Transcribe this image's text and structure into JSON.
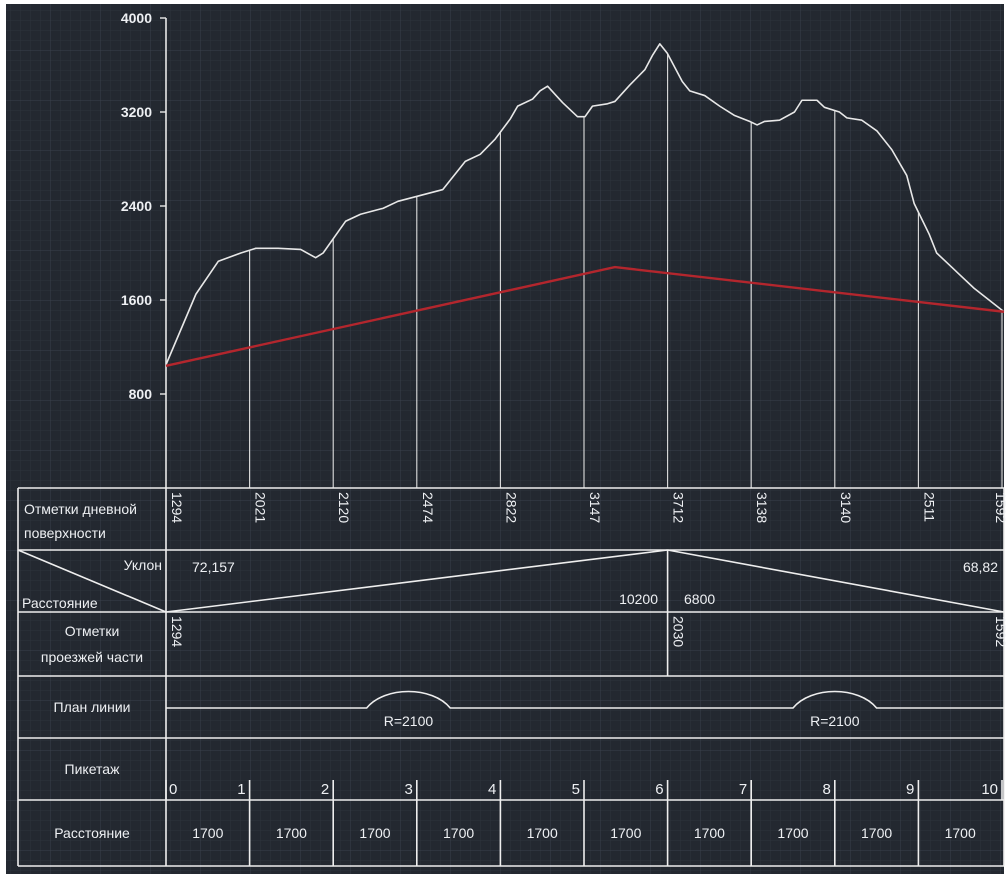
{
  "y_axis": {
    "min": 0,
    "max": 4000,
    "ticks": [
      "800",
      "1600",
      "2400",
      "3200",
      "4000"
    ]
  },
  "terrain_profile": {
    "stroke": "#e8e8e8",
    "points": [
      [
        0,
        1050
      ],
      [
        0.4,
        1650
      ],
      [
        0.7,
        1930
      ],
      [
        1.0,
        2000
      ],
      [
        1.2,
        2040
      ],
      [
        1.5,
        2040
      ],
      [
        1.8,
        2030
      ],
      [
        2.0,
        1960
      ],
      [
        2.1,
        2000
      ],
      [
        2.4,
        2270
      ],
      [
        2.6,
        2330
      ],
      [
        2.9,
        2380
      ],
      [
        3.1,
        2440
      ],
      [
        3.4,
        2490
      ],
      [
        3.7,
        2540
      ],
      [
        3.8,
        2620
      ],
      [
        4.0,
        2780
      ],
      [
        4.2,
        2840
      ],
      [
        4.4,
        2970
      ],
      [
        4.6,
        3140
      ],
      [
        4.7,
        3250
      ],
      [
        4.9,
        3310
      ],
      [
        5.0,
        3380
      ],
      [
        5.1,
        3420
      ],
      [
        5.3,
        3280
      ],
      [
        5.5,
        3160
      ],
      [
        5.6,
        3160
      ],
      [
        5.7,
        3250
      ],
      [
        5.9,
        3270
      ],
      [
        6.0,
        3290
      ],
      [
        6.2,
        3430
      ],
      [
        6.4,
        3560
      ],
      [
        6.5,
        3680
      ],
      [
        6.6,
        3780
      ],
      [
        6.7,
        3700
      ],
      [
        6.9,
        3460
      ],
      [
        7.0,
        3380
      ],
      [
        7.2,
        3340
      ],
      [
        7.4,
        3250
      ],
      [
        7.6,
        3170
      ],
      [
        7.8,
        3120
      ],
      [
        7.9,
        3090
      ],
      [
        8.0,
        3120
      ],
      [
        8.2,
        3130
      ],
      [
        8.4,
        3200
      ],
      [
        8.5,
        3300
      ],
      [
        8.7,
        3300
      ],
      [
        8.8,
        3240
      ],
      [
        9.0,
        3200
      ],
      [
        9.1,
        3150
      ],
      [
        9.3,
        3130
      ],
      [
        9.5,
        3040
      ],
      [
        9.7,
        2880
      ],
      [
        9.9,
        2660
      ],
      [
        10.0,
        2420
      ],
      [
        10.2,
        2160
      ],
      [
        10.3,
        2000
      ],
      [
        10.5,
        1880
      ],
      [
        10.6,
        1820
      ],
      [
        10.8,
        1700
      ],
      [
        11.0,
        1600
      ],
      [
        11.2,
        1500
      ]
    ]
  },
  "design_line": {
    "stroke": "#b3262d",
    "points": [
      [
        0,
        1040
      ],
      [
        6,
        1880
      ],
      [
        11.2,
        1500
      ]
    ]
  },
  "ordinate_stations": [
    1,
    2,
    3,
    4,
    5,
    6,
    7,
    8,
    9,
    10
  ],
  "table": {
    "row_labels": {
      "surface_marks": [
        "Отметки дневной",
        "поверхности"
      ],
      "slope": "Уклон",
      "distance": "Расстояние",
      "roadway_marks": [
        "Отметки",
        "проезжей части"
      ],
      "plan": "План линии",
      "chainage": "Пикетаж",
      "distance_row": "Расстояние"
    },
    "surface_marks": [
      {
        "station": 0,
        "value": "1294"
      },
      {
        "station": 1,
        "value": "2021"
      },
      {
        "station": 2,
        "value": "2120"
      },
      {
        "station": 3,
        "value": "2474"
      },
      {
        "station": 4,
        "value": "2822"
      },
      {
        "station": 5,
        "value": "3147"
      },
      {
        "station": 6,
        "value": "3712"
      },
      {
        "station": 7,
        "value": "3138"
      },
      {
        "station": 8,
        "value": "3140"
      },
      {
        "station": 9,
        "value": "2511"
      },
      {
        "station": 10,
        "value": "1592"
      }
    ],
    "slope_values": {
      "left": "72,157",
      "right": "68,82"
    },
    "distance_values": {
      "left": "10200",
      "right": "6800"
    },
    "roadway_marks": [
      {
        "station": 0,
        "value": "1294"
      },
      {
        "station": 6,
        "value": "2030"
      },
      {
        "station": 10,
        "value": "1592"
      }
    ],
    "plan_curves": [
      {
        "from": 2.4,
        "to": 3.4,
        "label": "R=2100"
      },
      {
        "from": 7.5,
        "to": 8.5,
        "label": "R=2100"
      }
    ],
    "chainage": [
      "0",
      "1",
      "2",
      "3",
      "4",
      "5",
      "6",
      "7",
      "8",
      "9",
      "10"
    ],
    "distances": [
      "1700",
      "1700",
      "1700",
      "1700",
      "1700",
      "1700",
      "1700",
      "1700",
      "1700",
      "1700"
    ]
  }
}
